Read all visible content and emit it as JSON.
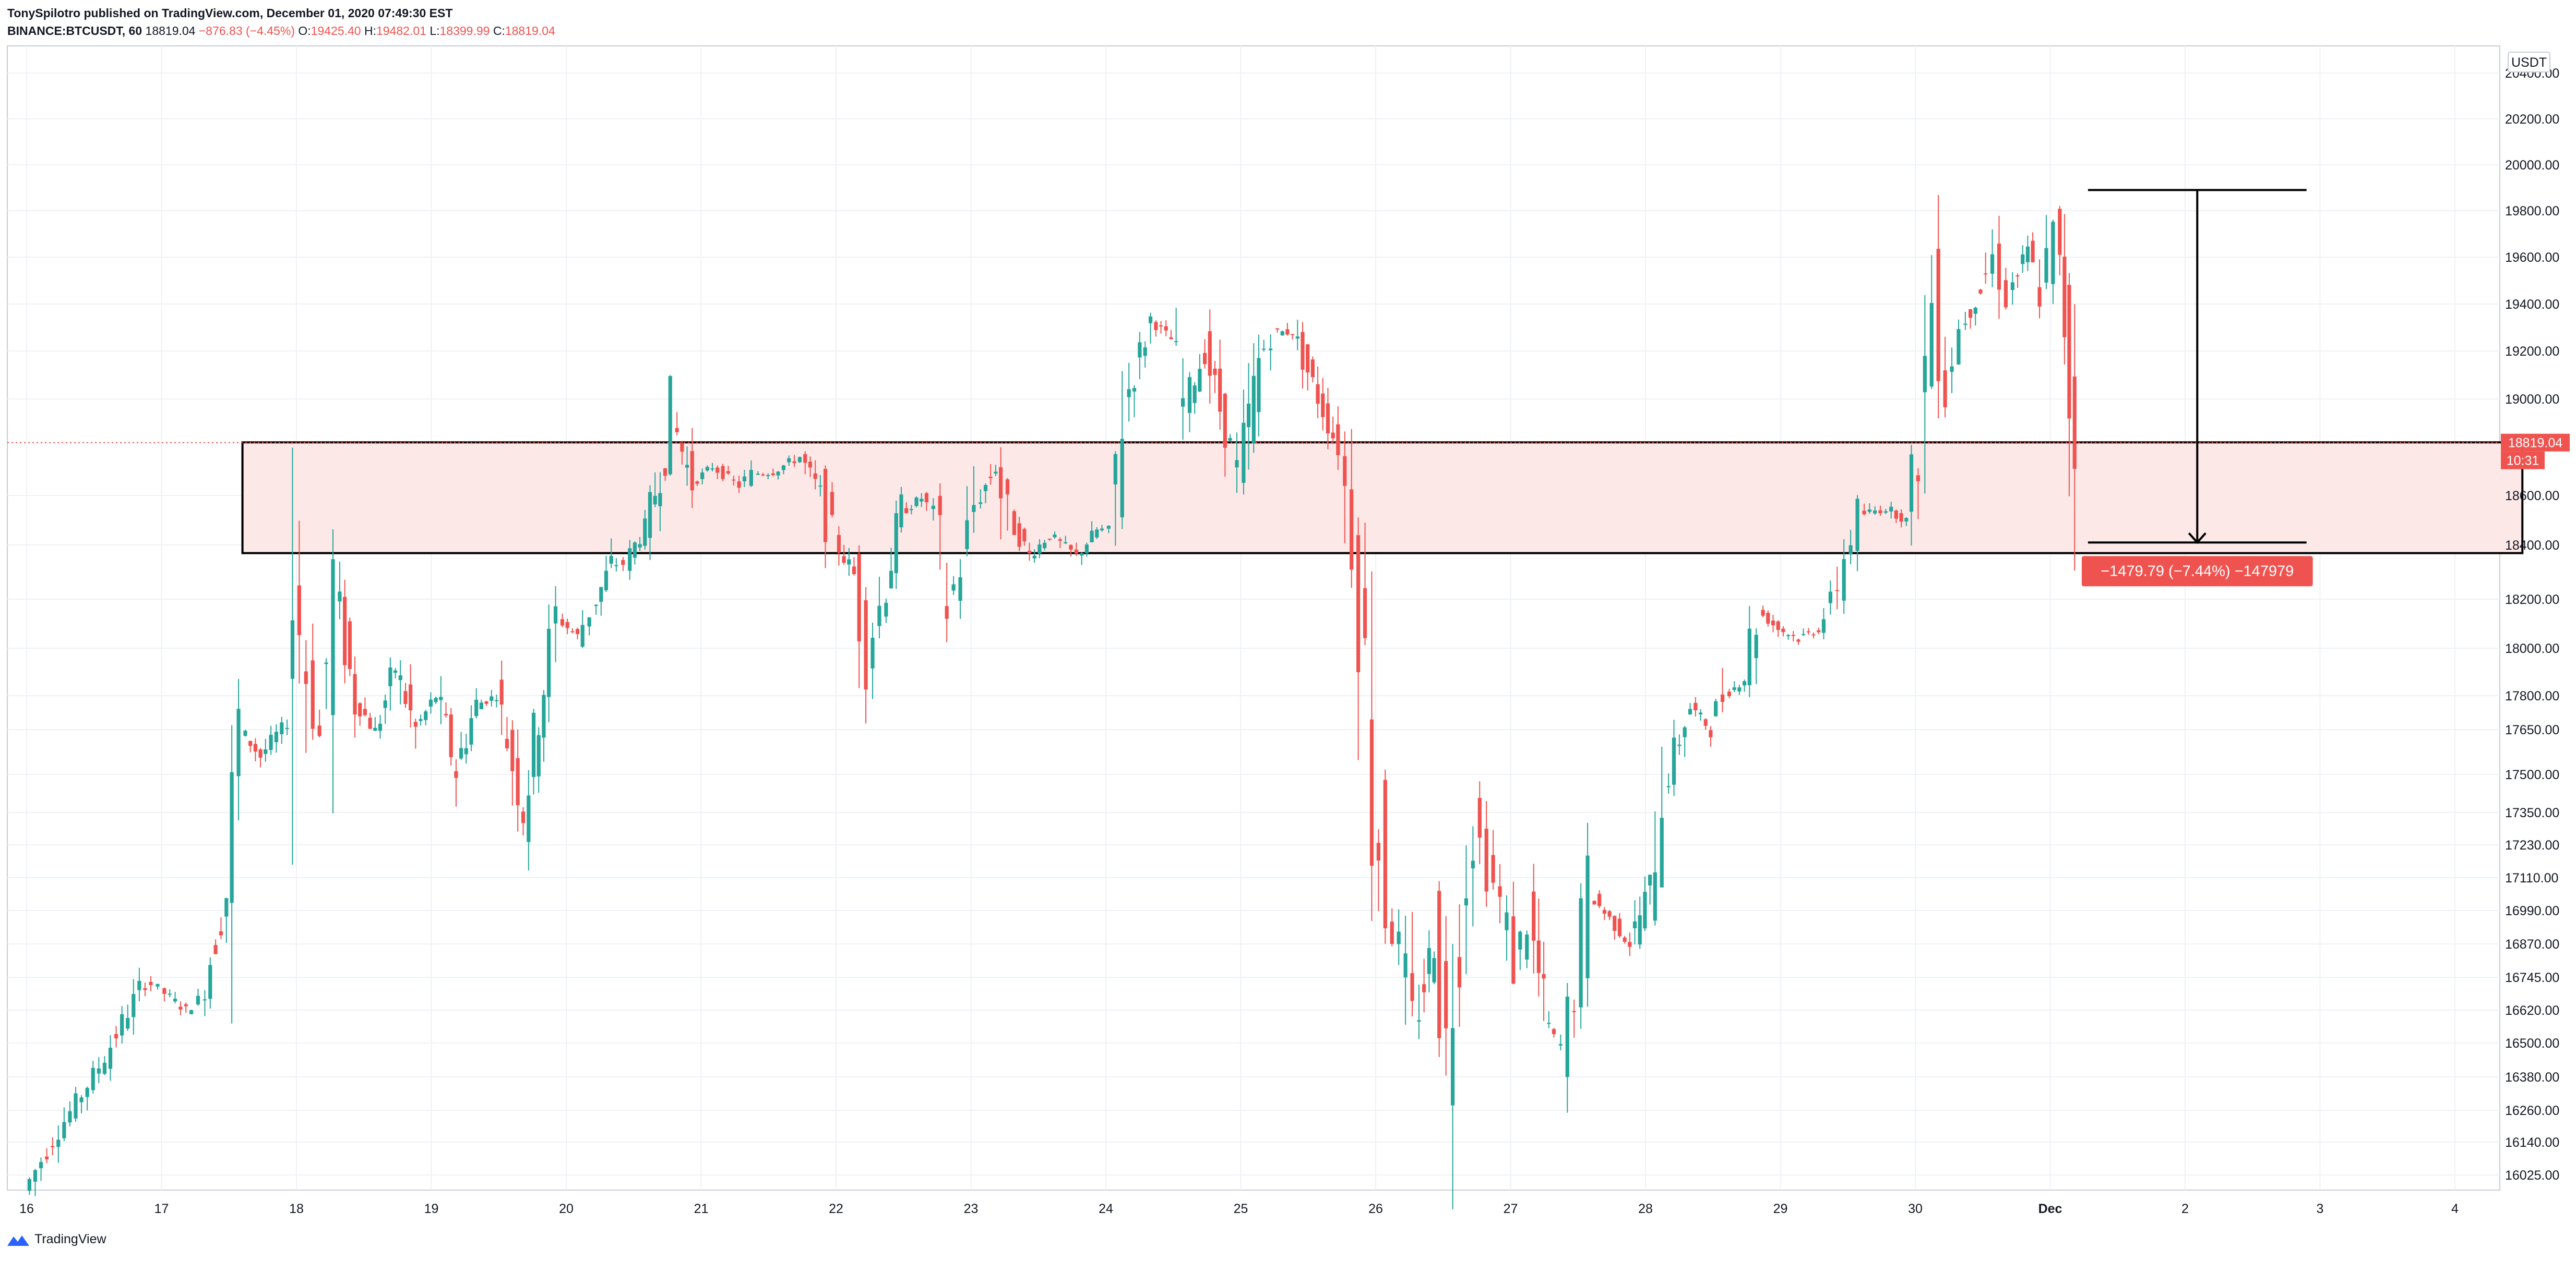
{
  "header": {
    "publisher_line": "TonySpilotro published on TradingView.com, December 01, 2020 07:49:30 EST",
    "symbol": "BINANCE:BTCUSDT, 60",
    "last": "18819.04",
    "change": "−876.83 (−4.45%)",
    "open_label": "O:",
    "open": "19425.40",
    "high_label": "H:",
    "high": "19482.01",
    "low_label": "L:",
    "low": "18399.99",
    "close_label": "C:",
    "close": "18819.04"
  },
  "footer": {
    "brand": "TradingView",
    "logo_icon": "tradingview-logo-icon"
  },
  "colors": {
    "up": "#26a69a",
    "down": "#ef5350",
    "zone_fill": "#fde8e8",
    "grid": "#eef1f5"
  },
  "chart_data": {
    "type": "candlestick",
    "currency": "USDT",
    "price_tick_labels": [
      "20400.00",
      "20200.00",
      "20000.00",
      "19800.00",
      "19600.00",
      "19400.00",
      "19200.00",
      "19000.00",
      "18600.00",
      "18400.00",
      "18200.00",
      "18000.00",
      "17800.00",
      "17650.00",
      "17500.00",
      "17350.00",
      "17230.00",
      "17110.00",
      "16990.00",
      "16870.00",
      "16745.00",
      "16620.00",
      "16500.00",
      "16380.00",
      "16260.00",
      "16140.00",
      "16025.00"
    ],
    "x_tick_labels": [
      "16",
      "17",
      "18",
      "19",
      "20",
      "21",
      "22",
      "23",
      "24",
      "25",
      "26",
      "27",
      "28",
      "29",
      "30",
      "Dec",
      "2",
      "3",
      "4"
    ],
    "last_price_label": "18819.04",
    "countdown_label": "10:31",
    "support_zone": {
      "low": 18370,
      "high": 18820,
      "start_day": 17.6,
      "end_day": 34.5
    },
    "measure": {
      "from": 19890,
      "to": 18410,
      "label": "−1479.79 (−7.44%) −147979"
    },
    "price_path": [
      [
        16.0,
        15970
      ],
      [
        16.3,
        16220
      ],
      [
        16.6,
        16450
      ],
      [
        16.9,
        16740
      ],
      [
        17.0,
        16700
      ],
      [
        17.2,
        16620
      ],
      [
        17.3,
        16660
      ],
      [
        17.5,
        17050
      ],
      [
        17.6,
        17650
      ],
      [
        17.75,
        17560
      ],
      [
        17.95,
        17680
      ],
      [
        18.0,
        18250
      ],
      [
        18.1,
        17900
      ],
      [
        18.2,
        17620
      ],
      [
        18.3,
        18240
      ],
      [
        18.45,
        17780
      ],
      [
        18.6,
        17640
      ],
      [
        18.75,
        17920
      ],
      [
        18.9,
        17650
      ],
      [
        19.05,
        17800
      ],
      [
        19.2,
        17510
      ],
      [
        19.35,
        17760
      ],
      [
        19.5,
        17800
      ],
      [
        19.7,
        17360
      ],
      [
        19.85,
        17850
      ],
      [
        19.95,
        18120
      ],
      [
        20.1,
        18050
      ],
      [
        20.2,
        18150
      ],
      [
        20.35,
        18330
      ],
      [
        20.45,
        18330
      ],
      [
        20.6,
        18470
      ],
      [
        20.75,
        18760
      ],
      [
        20.8,
        18920
      ],
      [
        20.95,
        18650
      ],
      [
        21.1,
        18720
      ],
      [
        21.3,
        18640
      ],
      [
        21.4,
        18690
      ],
      [
        21.55,
        18700
      ],
      [
        21.75,
        18760
      ],
      [
        21.9,
        18610
      ],
      [
        22.0,
        18420
      ],
      [
        22.15,
        18290
      ],
      [
        22.25,
        17990
      ],
      [
        22.35,
        18170
      ],
      [
        22.5,
        18530
      ],
      [
        22.65,
        18590
      ],
      [
        22.75,
        18530
      ],
      [
        22.85,
        18180
      ],
      [
        22.95,
        18310
      ],
      [
        23.05,
        18560
      ],
      [
        23.2,
        18720
      ],
      [
        23.3,
        18500
      ],
      [
        23.45,
        18360
      ],
      [
        23.6,
        18440
      ],
      [
        23.8,
        18360
      ],
      [
        23.95,
        18460
      ],
      [
        24.05,
        18460
      ],
      [
        24.15,
        18970
      ],
      [
        24.35,
        19330
      ],
      [
        24.5,
        19250
      ],
      [
        24.6,
        18980
      ],
      [
        24.75,
        19200
      ],
      [
        24.9,
        18880
      ],
      [
        25.0,
        18690
      ],
      [
        25.15,
        19150
      ],
      [
        25.25,
        19280
      ],
      [
        25.4,
        19280
      ],
      [
        25.55,
        19060
      ],
      [
        25.7,
        18850
      ],
      [
        25.75,
        18800
      ],
      [
        25.85,
        18450
      ],
      [
        25.95,
        17920
      ],
      [
        26.0,
        17470
      ],
      [
        26.1,
        17030
      ],
      [
        26.2,
        16840
      ],
      [
        26.3,
        16550
      ],
      [
        26.45,
        16890
      ],
      [
        26.55,
        16480
      ],
      [
        26.65,
        16980
      ],
      [
        26.75,
        17320
      ],
      [
        26.85,
        17150
      ],
      [
        26.95,
        17020
      ],
      [
        27.05,
        16800
      ],
      [
        27.15,
        16950
      ],
      [
        27.3,
        16540
      ],
      [
        27.4,
        16490
      ],
      [
        27.5,
        16700
      ],
      [
        27.6,
        17050
      ],
      [
        27.75,
        16960
      ],
      [
        27.9,
        16870
      ],
      [
        28.05,
        17080
      ],
      [
        28.15,
        17440
      ],
      [
        28.35,
        17750
      ],
      [
        28.5,
        17650
      ],
      [
        28.6,
        17800
      ],
      [
        28.75,
        17870
      ],
      [
        28.85,
        18150
      ],
      [
        29.0,
        18080
      ],
      [
        29.15,
        18040
      ],
      [
        29.3,
        18080
      ],
      [
        29.4,
        18180
      ],
      [
        29.5,
        18360
      ],
      [
        29.6,
        18520
      ],
      [
        29.8,
        18550
      ],
      [
        29.95,
        18500
      ],
      [
        30.05,
        18780
      ],
      [
        30.15,
        19440
      ],
      [
        30.25,
        19080
      ],
      [
        30.35,
        19300
      ],
      [
        30.5,
        19460
      ],
      [
        30.6,
        19600
      ],
      [
        30.7,
        19440
      ],
      [
        30.85,
        19620
      ],
      [
        30.95,
        19450
      ],
      [
        31.05,
        19680
      ],
      [
        31.12,
        19320
      ],
      [
        31.2,
        18800
      ]
    ]
  }
}
